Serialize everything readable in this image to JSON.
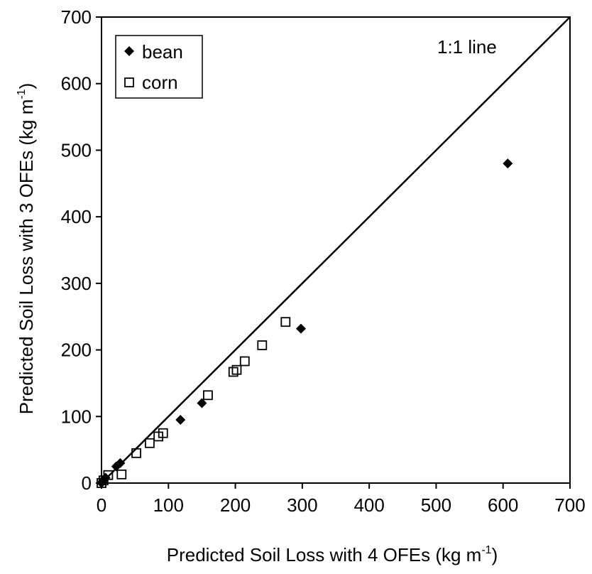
{
  "chart_data": {
    "type": "scatter",
    "xlabel": "Predicted Soil Loss with 4 OFEs (kg m",
    "xlabel_sup": "-1",
    "xlabel_tail": ")",
    "ylabel": "Predicted Soil Loss with 3 OFEs (kg m",
    "ylabel_sup": "-1",
    "ylabel_tail": ")",
    "xlim": [
      0,
      700
    ],
    "ylim": [
      0,
      700
    ],
    "xticks": [
      "0",
      "100",
      "200",
      "300",
      "400",
      "500",
      "600",
      "700"
    ],
    "yticks": [
      "0",
      "100",
      "200",
      "300",
      "400",
      "500",
      "600",
      "700"
    ],
    "grid": false,
    "legend_position": "top-left",
    "reference_line": {
      "label": "1:1 line",
      "from": [
        0,
        0
      ],
      "to": [
        700,
        700
      ]
    },
    "series": [
      {
        "name": "bean",
        "marker": "filled-diamond",
        "color": "#000000",
        "points": [
          [
            0,
            0
          ],
          [
            2,
            3
          ],
          [
            4,
            6
          ],
          [
            6,
            8
          ],
          [
            22,
            25
          ],
          [
            28,
            30
          ],
          [
            118,
            95
          ],
          [
            150,
            120
          ],
          [
            298,
            232
          ],
          [
            607,
            480
          ]
        ]
      },
      {
        "name": "corn",
        "marker": "open-square",
        "color": "#000000",
        "points": [
          [
            0,
            0
          ],
          [
            3,
            4
          ],
          [
            10,
            12
          ],
          [
            30,
            13
          ],
          [
            52,
            45
          ],
          [
            72,
            60
          ],
          [
            85,
            70
          ],
          [
            92,
            75
          ],
          [
            197,
            167
          ],
          [
            202,
            170
          ],
          [
            214,
            183
          ],
          [
            159,
            132
          ],
          [
            240,
            207
          ],
          [
            275,
            242
          ]
        ]
      }
    ]
  }
}
